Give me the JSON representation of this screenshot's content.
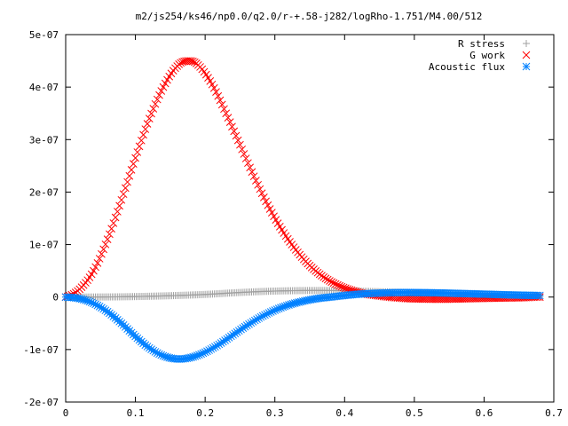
{
  "chart_data": {
    "type": "scatter",
    "title": "m2/js254/ks46/np0.0/q2.0/r-+.58-j282/logRho-1.751/M4.00/512",
    "xlabel": "",
    "ylabel": "",
    "xlim": [
      0,
      0.7
    ],
    "ylim": [
      -2e-07,
      5e-07
    ],
    "x_ticks": [
      {
        "value": 0,
        "label": "0"
      },
      {
        "value": 0.1,
        "label": "0.1"
      },
      {
        "value": 0.2,
        "label": "0.2"
      },
      {
        "value": 0.3,
        "label": "0.3"
      },
      {
        "value": 0.4,
        "label": "0.4"
      },
      {
        "value": 0.5,
        "label": "0.5"
      },
      {
        "value": 0.6,
        "label": "0.6"
      },
      {
        "value": 0.7,
        "label": "0.7"
      }
    ],
    "y_ticks": [
      {
        "value": -2e-07,
        "label": "-2e-07"
      },
      {
        "value": -1e-07,
        "label": "-1e-07"
      },
      {
        "value": 0,
        "label": "0"
      },
      {
        "value": 1e-07,
        "label": "1e-07"
      },
      {
        "value": 2e-07,
        "label": "2e-07"
      },
      {
        "value": 3e-07,
        "label": "3e-07"
      },
      {
        "value": 4e-07,
        "label": "4e-07"
      },
      {
        "value": 5e-07,
        "label": "5e-07"
      }
    ],
    "grid": false,
    "legend_position": "top-right",
    "series": [
      {
        "name": "R stress",
        "marker": "plus",
        "color": "#a0a0a0",
        "x": [
          0,
          0.04,
          0.08,
          0.12,
          0.16,
          0.2,
          0.24,
          0.28,
          0.32,
          0.36,
          0.4,
          0.44,
          0.48,
          0.52,
          0.56,
          0.6,
          0.64,
          0.68
        ],
        "y": [
          0,
          1e-10,
          5e-10,
          1.5e-09,
          3e-09,
          5e-09,
          8e-09,
          1.05e-08,
          1.2e-08,
          1.25e-08,
          1.2e-08,
          1.05e-08,
          9e-09,
          7e-09,
          5e-09,
          3.5e-09,
          2.5e-09,
          1.5e-09
        ]
      },
      {
        "name": "G work",
        "marker": "cross",
        "color": "#ff0000",
        "x": [
          0,
          0.02,
          0.04,
          0.06,
          0.08,
          0.1,
          0.12,
          0.14,
          0.16,
          0.175,
          0.19,
          0.21,
          0.23,
          0.25,
          0.27,
          0.29,
          0.31,
          0.33,
          0.35,
          0.37,
          0.39,
          0.41,
          0.43,
          0.45,
          0.47,
          0.49,
          0.52,
          0.55,
          0.58,
          0.62,
          0.66,
          0.68
        ],
        "y": [
          0,
          1.5e-08,
          5e-08,
          1.1e-07,
          1.85e-07,
          2.65e-07,
          3.4e-07,
          4e-07,
          4.4e-07,
          4.5e-07,
          4.42e-07,
          4.05e-07,
          3.5e-07,
          2.9e-07,
          2.3e-07,
          1.75e-07,
          1.28e-07,
          9e-08,
          6e-08,
          3.8e-08,
          2.3e-08,
          1.3e-08,
          6e-09,
          2e-09,
          -1e-09,
          -3e-09,
          -4e-09,
          -4e-09,
          -3e-09,
          -2e-09,
          -1e-09,
          0
        ]
      },
      {
        "name": "Acoustic flux",
        "marker": "star",
        "color": "#0080ff",
        "x": [
          0,
          0.02,
          0.04,
          0.06,
          0.08,
          0.1,
          0.12,
          0.14,
          0.16,
          0.18,
          0.2,
          0.22,
          0.24,
          0.26,
          0.28,
          0.3,
          0.32,
          0.34,
          0.36,
          0.38,
          0.4,
          0.42,
          0.44,
          0.46,
          0.48,
          0.5,
          0.53,
          0.56,
          0.6,
          0.64,
          0.68
        ],
        "y": [
          0,
          -3e-09,
          -1.2e-08,
          -2.8e-08,
          -5e-08,
          -7.5e-08,
          -9.7e-08,
          -1.12e-07,
          -1.18e-07,
          -1.15e-07,
          -1.05e-07,
          -9e-08,
          -7.2e-08,
          -5.4e-08,
          -3.8e-08,
          -2.5e-08,
          -1.5e-08,
          -8e-09,
          -3e-09,
          0,
          3e-09,
          5.5e-09,
          7e-09,
          8e-09,
          8.5e-09,
          8.5e-09,
          8e-09,
          7e-09,
          5.5e-09,
          4e-09,
          3e-09
        ]
      }
    ]
  }
}
